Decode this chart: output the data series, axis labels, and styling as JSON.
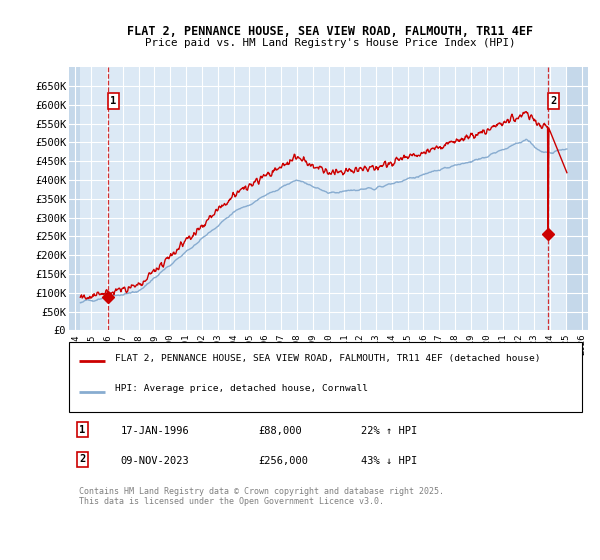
{
  "title": "FLAT 2, PENNANCE HOUSE, SEA VIEW ROAD, FALMOUTH, TR11 4EF",
  "subtitle": "Price paid vs. HM Land Registry's House Price Index (HPI)",
  "ylim": [
    0,
    700000
  ],
  "yticks": [
    0,
    50000,
    100000,
    150000,
    200000,
    250000,
    300000,
    350000,
    400000,
    450000,
    500000,
    550000,
    600000,
    650000
  ],
  "ytick_labels": [
    "£0",
    "£50K",
    "£100K",
    "£150K",
    "£200K",
    "£250K",
    "£300K",
    "£350K",
    "£400K",
    "£450K",
    "£500K",
    "£550K",
    "£600K",
    "£650K"
  ],
  "plot_bg": "#dce9f5",
  "fig_bg": "#ffffff",
  "grid_color": "#ffffff",
  "red_color": "#cc0000",
  "blue_color": "#88acd0",
  "hatch_bg": "#c5d8ea",
  "t1_x": 1996.05,
  "t1_y": 88000,
  "t2_x": 2023.86,
  "t2_y": 256000,
  "data_start": 1994.3,
  "data_end": 2025.1,
  "xmin": 1993.6,
  "xmax": 2026.4,
  "legend_line1": "FLAT 2, PENNANCE HOUSE, SEA VIEW ROAD, FALMOUTH, TR11 4EF (detached house)",
  "legend_line2": "HPI: Average price, detached house, Cornwall",
  "note1_date": "17-JAN-1996",
  "note1_price": "£88,000",
  "note1_pct": "22% ↑ HPI",
  "note2_date": "09-NOV-2023",
  "note2_price": "£256,000",
  "note2_pct": "43% ↓ HPI",
  "footnote": "Contains HM Land Registry data © Crown copyright and database right 2025.\nThis data is licensed under the Open Government Licence v3.0."
}
